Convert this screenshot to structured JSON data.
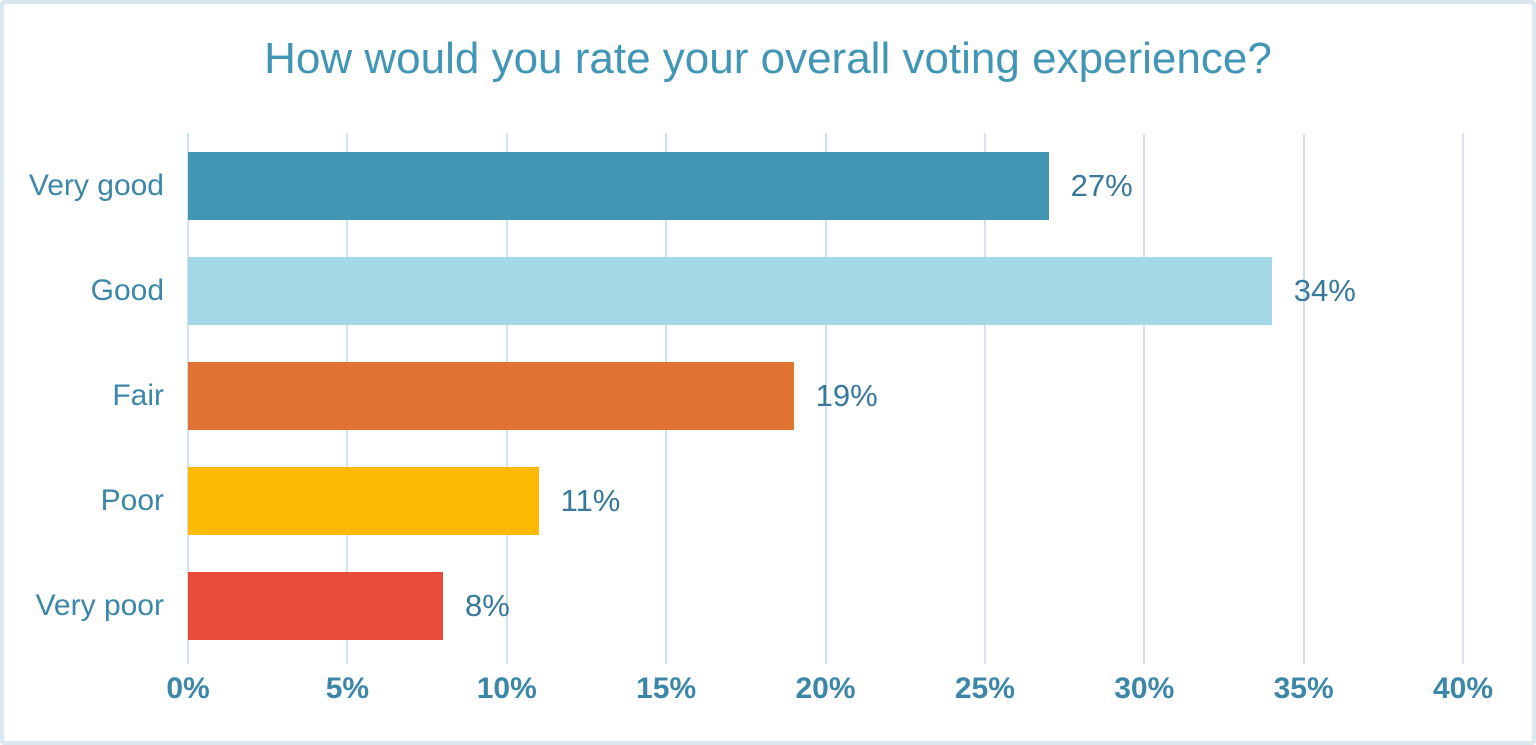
{
  "title": "How would you rate your overall voting experience?",
  "chart_data": {
    "type": "bar",
    "orientation": "horizontal",
    "title": "How would you rate your overall voting experience?",
    "categories": [
      "Very good",
      "Good",
      "Fair",
      "Poor",
      "Very poor"
    ],
    "values": [
      27,
      34,
      19,
      11,
      8
    ],
    "value_labels": [
      "27%",
      "34%",
      "19%",
      "11%",
      "8%"
    ],
    "bar_colors": [
      "#4295b3",
      "#a5d8e7",
      "#e17334",
      "#fcba03",
      "#e84b3c"
    ],
    "xlabel": "",
    "ylabel": "",
    "xlim": [
      0,
      40
    ],
    "x_tick_values": [
      0,
      5,
      10,
      15,
      20,
      25,
      30,
      35,
      40
    ],
    "x_tick_labels": [
      "0%",
      "5%",
      "10%",
      "15%",
      "20%",
      "25%",
      "30%",
      "35%",
      "40%"
    ],
    "grid": "vertical-only",
    "legend": "none",
    "style": {
      "title_color": "#4296b5",
      "label_color": "#3c87a8",
      "value_label_color": "#38789b",
      "grid_color": "#cfe3ed",
      "frame_border_color": "#d8e8ee",
      "background_color": "#ffffff"
    }
  }
}
